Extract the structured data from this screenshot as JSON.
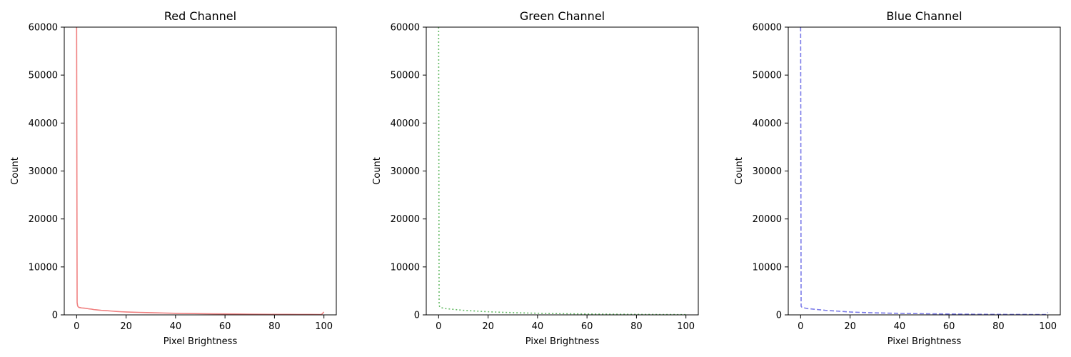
{
  "chart_data": [
    {
      "type": "line",
      "title": "Red Channel",
      "xlabel": "Pixel Brightness",
      "ylabel": "Count",
      "xlim": [
        -5,
        105
      ],
      "ylim": [
        0,
        60000
      ],
      "xticks": [
        0,
        20,
        40,
        60,
        80,
        100
      ],
      "yticks": [
        0,
        10000,
        20000,
        30000,
        40000,
        50000,
        60000
      ],
      "grid": false,
      "series": [
        {
          "color": "#f08080",
          "line_style": "solid",
          "x": [
            0,
            0.2,
            0.4,
            0.6,
            0.8,
            1,
            1.5,
            2,
            3,
            4,
            5,
            6,
            7,
            8,
            9,
            10,
            12,
            14,
            16,
            18,
            20,
            25,
            30,
            35,
            40,
            45,
            50,
            55,
            60,
            65,
            70,
            75,
            80,
            85,
            90,
            95,
            99,
            100
          ],
          "y": [
            60000,
            2600,
            1900,
            1700,
            1600,
            1550,
            1500,
            1450,
            1400,
            1350,
            1250,
            1200,
            1100,
            1050,
            1000,
            950,
            880,
            800,
            720,
            650,
            600,
            520,
            450,
            390,
            330,
            290,
            250,
            220,
            190,
            170,
            150,
            130,
            110,
            100,
            90,
            80,
            70,
            600
          ]
        }
      ]
    },
    {
      "type": "line",
      "title": "Green Channel",
      "xlabel": "Pixel Brightness",
      "ylabel": "Count",
      "xlim": [
        -5,
        105
      ],
      "ylim": [
        0,
        60000
      ],
      "xticks": [
        0,
        20,
        40,
        60,
        80,
        100
      ],
      "yticks": [
        0,
        10000,
        20000,
        30000,
        40000,
        50000,
        60000
      ],
      "grid": false,
      "series": [
        {
          "color": "#66bb66",
          "line_style": "dotted",
          "x": [
            0,
            0.2,
            0.5,
            1,
            2,
            3,
            5,
            7,
            10,
            15,
            20,
            25,
            30,
            40,
            50,
            60,
            70,
            80,
            90,
            100
          ],
          "y": [
            60000,
            2000,
            1600,
            1500,
            1400,
            1300,
            1200,
            1100,
            950,
            800,
            650,
            550,
            460,
            340,
            250,
            190,
            140,
            100,
            70,
            50
          ]
        }
      ]
    },
    {
      "type": "line",
      "title": "Blue Channel",
      "xlabel": "Pixel Brightness",
      "ylabel": "Count",
      "xlim": [
        -5,
        105
      ],
      "ylim": [
        0,
        60000
      ],
      "xticks": [
        0,
        20,
        40,
        60,
        80,
        100
      ],
      "yticks": [
        0,
        10000,
        20000,
        30000,
        40000,
        50000,
        60000
      ],
      "grid": false,
      "series": [
        {
          "color": "#7b7be8",
          "line_style": "dashed",
          "x": [
            0,
            0.2,
            0.5,
            1,
            2,
            3,
            5,
            7,
            10,
            15,
            20,
            25,
            30,
            40,
            50,
            60,
            70,
            80,
            90,
            99,
            100
          ],
          "y": [
            60000,
            1800,
            1600,
            1500,
            1400,
            1300,
            1200,
            1100,
            950,
            780,
            600,
            500,
            420,
            320,
            240,
            180,
            130,
            100,
            80,
            60,
            500
          ]
        }
      ]
    }
  ]
}
